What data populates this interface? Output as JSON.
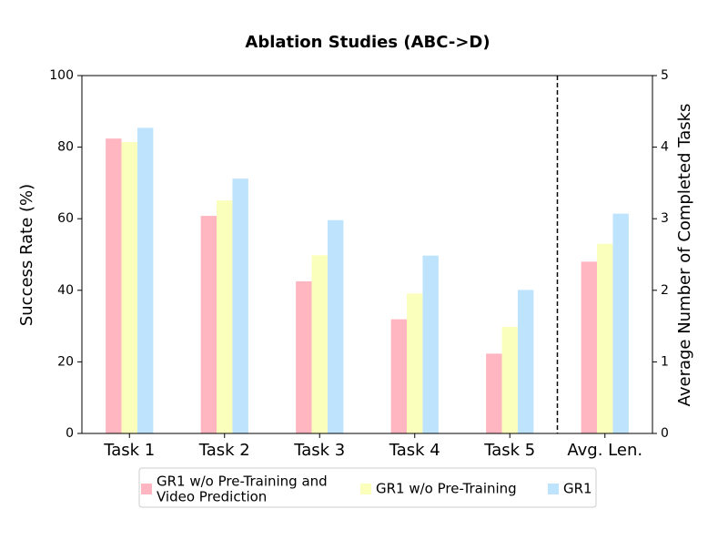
{
  "chart_data": {
    "type": "bar",
    "title": "Ablation Studies (ABC->D)",
    "ylabel": "Success Rate (%)",
    "y2label": "Average Number of Completed Tasks",
    "categories": [
      "Task 1",
      "Task 2",
      "Task 3",
      "Task 4",
      "Task 5"
    ],
    "y2_categories": [
      "Avg. Len."
    ],
    "series": [
      {
        "name": "GR1 w/o Pre-Training and\nVideo Prediction",
        "color": "#ffb6c1",
        "values": [
          82.4,
          60.8,
          42.5,
          31.9,
          22.3
        ],
        "y2_values": [
          2.4
        ]
      },
      {
        "name": "GR1 w/o Pre-Training",
        "color": "#fbffbc",
        "values": [
          81.4,
          65.1,
          49.8,
          39.1,
          29.8
        ],
        "y2_values": [
          2.65
        ]
      },
      {
        "name": "GR1",
        "color": "#bde3fd",
        "values": [
          85.4,
          71.2,
          59.6,
          49.7,
          40.1
        ],
        "y2_values": [
          3.07
        ]
      }
    ],
    "ylim": [
      0,
      100
    ],
    "yticks": [
      0,
      20,
      40,
      60,
      80,
      100
    ],
    "y2lim": [
      0,
      5
    ],
    "y2ticks": [
      0,
      1,
      2,
      3,
      4,
      5
    ],
    "grid": false,
    "legend": "lower center"
  }
}
